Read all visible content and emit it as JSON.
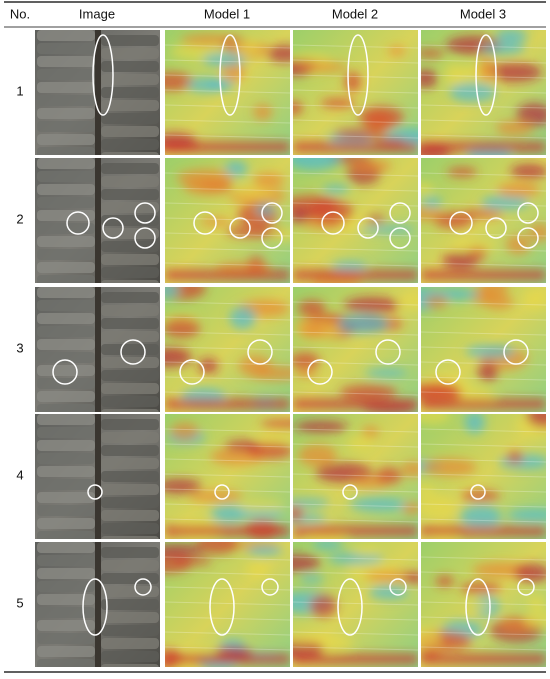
{
  "table": {
    "header": [
      "No.",
      "Image",
      "Model 1",
      "Model 2",
      "Model 3"
    ],
    "rows": [
      [
        "1"
      ],
      [
        "2"
      ],
      [
        "3"
      ],
      [
        "4"
      ],
      [
        "5"
      ]
    ]
  }
}
